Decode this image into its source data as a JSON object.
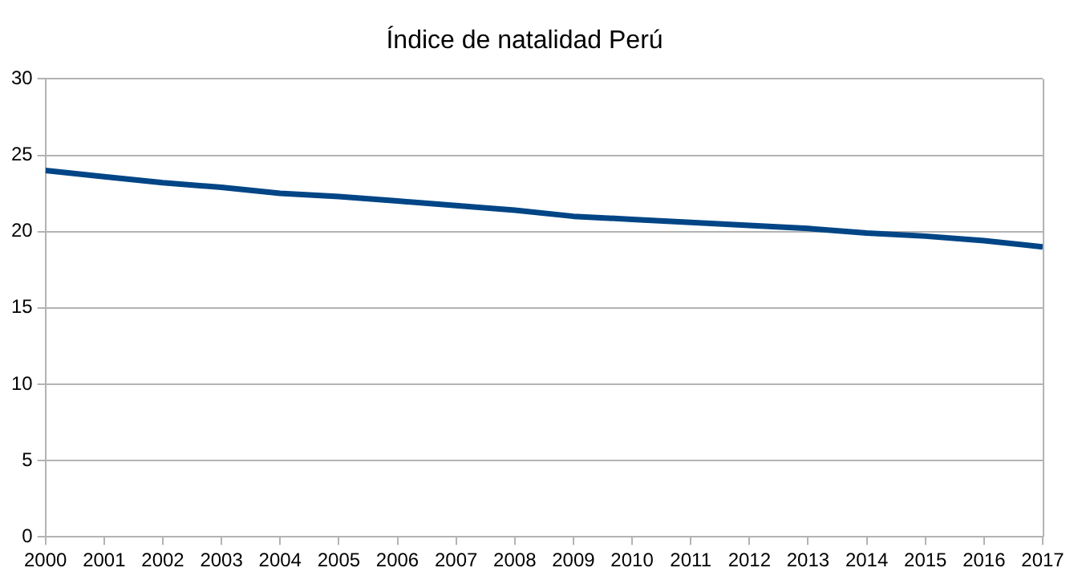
{
  "chart_data": {
    "type": "line",
    "title": "Índice de natalidad Perú",
    "x": [
      2000,
      2001,
      2002,
      2003,
      2004,
      2005,
      2006,
      2007,
      2008,
      2009,
      2010,
      2011,
      2012,
      2013,
      2014,
      2015,
      2016,
      2017
    ],
    "series": [
      {
        "color": "#004586",
        "values": [
          24.0,
          23.6,
          23.2,
          22.9,
          22.5,
          22.3,
          22.0,
          21.7,
          21.4,
          21.0,
          20.8,
          20.6,
          20.4,
          20.2,
          19.9,
          19.7,
          19.4,
          19.0
        ]
      }
    ],
    "xlim": [
      2000,
      2017
    ],
    "xticks": [
      2000,
      2001,
      2002,
      2003,
      2004,
      2005,
      2006,
      2007,
      2008,
      2009,
      2010,
      2011,
      2012,
      2013,
      2014,
      2015,
      2016,
      2017
    ],
    "ylim": [
      0,
      30
    ],
    "yticks": [
      0,
      5,
      10,
      15,
      20,
      25,
      30
    ],
    "grid": "y",
    "legend": false,
    "marker": "none",
    "line_style": "solid"
  }
}
